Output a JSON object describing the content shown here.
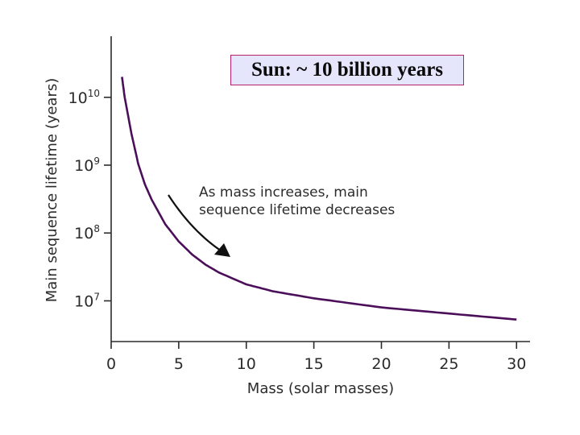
{
  "callout": {
    "text": "Sun:  ~ 10 billion years"
  },
  "annotation": {
    "line1": "As mass increases, main",
    "line2": "sequence lifetime decreases"
  },
  "colors": {
    "curve": "#4b0f5a",
    "axis": "#2b2b2b",
    "callout_border": "#b8206a",
    "callout_fill": "#e5e5fb"
  },
  "chart_data": {
    "type": "line",
    "title": "",
    "xlabel": "Mass (solar masses)",
    "ylabel": "Main sequence lifetime (years)",
    "xlim": [
      0,
      31
    ],
    "ylim_log10": [
      6.4,
      10.9
    ],
    "y_scale": "log",
    "x_ticks": [
      0,
      5,
      10,
      15,
      20,
      25,
      30
    ],
    "x_tick_labels": [
      "0",
      "5",
      "10",
      "15",
      "20",
      "25",
      "30"
    ],
    "y_ticks": [
      {
        "base": "10",
        "exp": "7",
        "log10": 7
      },
      {
        "base": "10",
        "exp": "8",
        "log10": 8
      },
      {
        "base": "10",
        "exp": "9",
        "log10": 9
      },
      {
        "base": "10",
        "exp": "10",
        "log10": 10
      }
    ],
    "series": [
      {
        "name": "Main sequence lifetime",
        "x": [
          0.8,
          1,
          1.5,
          2,
          2.5,
          3,
          4,
          5,
          6,
          7,
          8,
          10,
          12,
          15,
          20,
          25,
          30
        ],
        "y": [
          20000000000.0,
          10000000000.0,
          2900000000.0,
          1050000000.0,
          520000000.0,
          310000000.0,
          135000000.0,
          75000000.0,
          48000000.0,
          34000000.0,
          26000000.0,
          17500000.0,
          13800000.0,
          10900000.0,
          8000000.0,
          6500000.0,
          5300000.0
        ]
      }
    ]
  }
}
